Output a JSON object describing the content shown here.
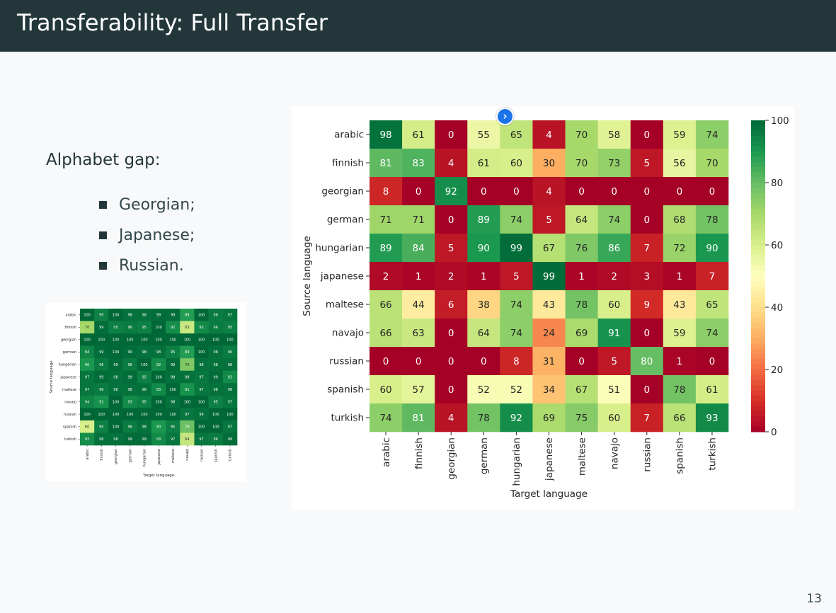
{
  "slide": {
    "title": "Transferability: Full Transfer",
    "subheading": "Alphabet gap:",
    "bullets": [
      "Georgian;",
      "Japanese;",
      "Russian."
    ],
    "page_number": "13",
    "nav_button_icon": "chevron-right-icon",
    "colors": {
      "header_bg": "#23373b",
      "slide_bg": "#f8f9fa",
      "nav_button": "#1a73e8"
    }
  },
  "chart_data": [
    {
      "type": "heatmap",
      "colormap": "RdYlGn",
      "xlabel": "Target language",
      "ylabel": "Source language",
      "x_categories": [
        "arabic",
        "finnish",
        "georgian",
        "german",
        "hungarian",
        "japanese",
        "maltese",
        "navajo",
        "russian",
        "spanish",
        "turkish"
      ],
      "y_categories": [
        "arabic",
        "finnish",
        "georgian",
        "german",
        "hungarian",
        "japanese",
        "maltese",
        "navajo",
        "russian",
        "spanish",
        "turkish"
      ],
      "vmin": 0,
      "vmax": 100,
      "colorbar_ticks": [
        0,
        20,
        40,
        60,
        80,
        100
      ],
      "values": [
        [
          100,
          95,
          100,
          98,
          98,
          99,
          99,
          89,
          100,
          96,
          97
        ],
        [
          70,
          99,
          95,
          96,
          95,
          100,
          92,
          63,
          93,
          96,
          95
        ],
        [
          100,
          100,
          100,
          100,
          100,
          100,
          100,
          100,
          100,
          100,
          100
        ],
        [
          94,
          99,
          100,
          99,
          98,
          98,
          95,
          89,
          100,
          98,
          96
        ],
        [
          90,
          96,
          99,
          96,
          100,
          92,
          99,
          76,
          98,
          98,
          98
        ],
        [
          97,
          99,
          98,
          99,
          95,
          100,
          98,
          98,
          97,
          99,
          93
        ],
        [
          97,
          96,
          98,
          98,
          98,
          93,
          100,
          91,
          97,
          98,
          98
        ],
        [
          94,
          91,
          100,
          93,
          95,
          100,
          98,
          100,
          100,
          95,
          97
        ],
        [
          100,
          100,
          100,
          100,
          100,
          100,
          100,
          97,
          98,
          100,
          100
        ],
        [
          60,
          95,
          100,
          96,
          98,
          90,
          95,
          79,
          100,
          100,
          97
        ],
        [
          92,
          98,
          98,
          99,
          99,
          93,
          97,
          64,
          97,
          96,
          99
        ]
      ]
    },
    {
      "type": "heatmap",
      "colormap": "RdYlGn",
      "xlabel": "Target language",
      "ylabel": "Source language",
      "x_categories": [
        "arabic",
        "finnish",
        "georgian",
        "german",
        "hungarian",
        "japanese",
        "maltese",
        "navajo",
        "russian",
        "spanish",
        "turkish"
      ],
      "y_categories": [
        "arabic",
        "finnish",
        "georgian",
        "german",
        "hungarian",
        "japanese",
        "maltese",
        "navajo",
        "russian",
        "spanish",
        "turkish"
      ],
      "vmin": 0,
      "vmax": 100,
      "colorbar_ticks": [
        0,
        20,
        40,
        60,
        80,
        100
      ],
      "values": [
        [
          98,
          61,
          0,
          55,
          65,
          4,
          70,
          58,
          0,
          59,
          74
        ],
        [
          81,
          83,
          4,
          61,
          60,
          30,
          70,
          73,
          5,
          56,
          70
        ],
        [
          8,
          0,
          92,
          0,
          0,
          4,
          0,
          0,
          0,
          0,
          0
        ],
        [
          71,
          71,
          0,
          89,
          74,
          5,
          64,
          74,
          0,
          68,
          78
        ],
        [
          89,
          84,
          5,
          90,
          99,
          67,
          76,
          86,
          7,
          72,
          90
        ],
        [
          2,
          1,
          2,
          1,
          5,
          99,
          1,
          2,
          3,
          1,
          7
        ],
        [
          66,
          44,
          6,
          38,
          74,
          43,
          78,
          60,
          9,
          43,
          65
        ],
        [
          66,
          63,
          0,
          64,
          74,
          24,
          69,
          91,
          0,
          59,
          74
        ],
        [
          0,
          0,
          0,
          0,
          8,
          31,
          0,
          5,
          80,
          1,
          0
        ],
        [
          60,
          57,
          0,
          52,
          52,
          34,
          67,
          51,
          0,
          78,
          61
        ],
        [
          74,
          81,
          4,
          78,
          92,
          69,
          75,
          60,
          7,
          66,
          93
        ]
      ]
    }
  ]
}
